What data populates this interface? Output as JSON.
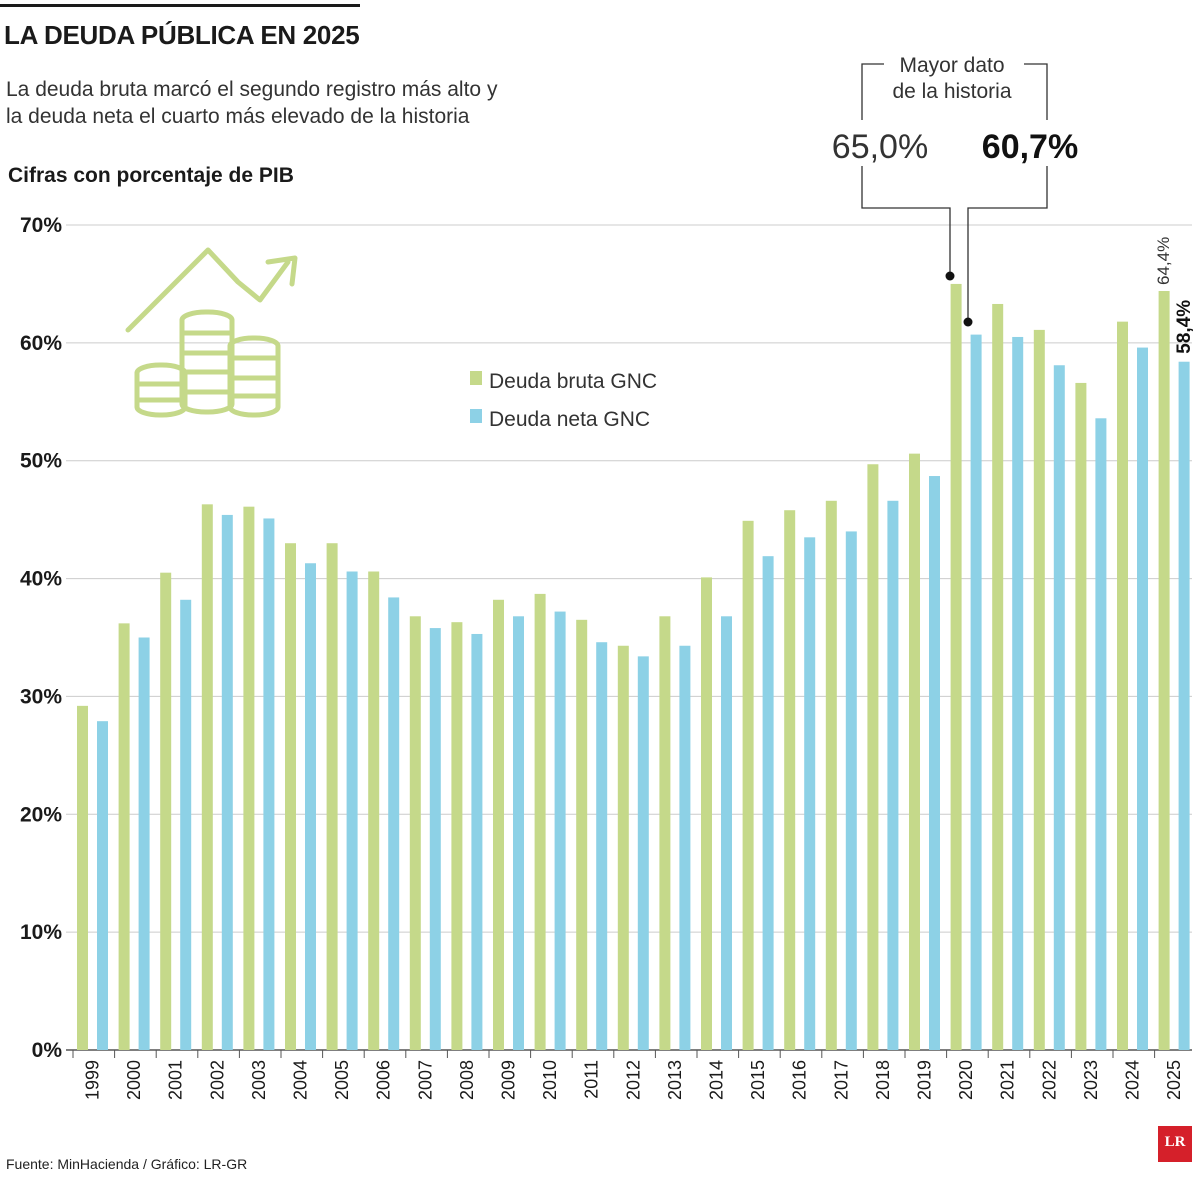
{
  "header": {
    "title": "LA DEUDA PÚBLICA EN 2025",
    "subtitle_line1": "La deuda bruta marcó el segundo registro más alto y",
    "subtitle_line2": "la deuda neta el cuarto más elevado de la historia",
    "unit_label": "Cifras con porcentaje de PIB"
  },
  "footer": {
    "source": "Fuente: MinHacienda / Gráfico: LR-GR",
    "logo_text": "LR"
  },
  "annotation": {
    "box_line1": "Mayor dato",
    "box_line2": "de la historia",
    "gross_peak": "65,0%",
    "net_peak": "60,7%",
    "last_gross": "64,4%",
    "last_net": "58,4%"
  },
  "colors": {
    "gross": "#c5d98a",
    "net": "#8dd1e6",
    "grid": "#cccccc",
    "icon": "#c5d98a"
  },
  "chart_data": {
    "type": "bar",
    "title": "LA DEUDA PÚBLICA EN 2025",
    "ylabel": "Cifras con porcentaje de PIB",
    "ylim": [
      0,
      70
    ],
    "yticks": [
      "0%",
      "10%",
      "20%",
      "30%",
      "40%",
      "50%",
      "60%",
      "70%"
    ],
    "categories": [
      "1999",
      "2000",
      "2001",
      "2002",
      "2003",
      "2004",
      "2005",
      "2006",
      "2007",
      "2008",
      "2009",
      "2010",
      "2011",
      "2012",
      "2013",
      "2014",
      "2015",
      "2016",
      "2017",
      "2018",
      "2019",
      "2020",
      "2021",
      "2022",
      "2023",
      "2024",
      "2025"
    ],
    "series": [
      {
        "name": "Deuda bruta GNC",
        "values": [
          29.2,
          36.2,
          40.5,
          46.3,
          46.1,
          43.0,
          43.0,
          40.6,
          36.8,
          36.3,
          38.2,
          38.7,
          36.5,
          34.3,
          36.8,
          40.1,
          44.9,
          45.8,
          46.6,
          49.7,
          50.6,
          65.0,
          63.3,
          61.1,
          56.6,
          61.8,
          64.4
        ]
      },
      {
        "name": "Deuda neta GNC",
        "values": [
          27.9,
          35.0,
          38.2,
          45.4,
          45.1,
          41.3,
          40.6,
          38.4,
          35.8,
          35.3,
          36.8,
          37.2,
          34.6,
          33.4,
          34.3,
          36.8,
          41.9,
          43.5,
          44.0,
          46.6,
          48.7,
          60.7,
          60.5,
          58.1,
          53.6,
          59.6,
          58.4
        ]
      }
    ],
    "legend": [
      "Deuda bruta GNC",
      "Deuda neta GNC"
    ]
  }
}
